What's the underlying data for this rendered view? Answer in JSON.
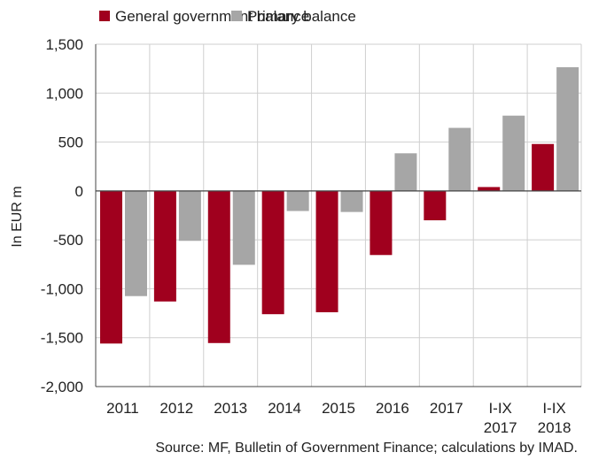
{
  "chart_data": {
    "type": "bar",
    "title": "",
    "xlabel": "",
    "ylabel": "In EUR m",
    "ylim": [
      -2000,
      1500
    ],
    "yticks": [
      -2000,
      -1500,
      -1000,
      -500,
      0,
      500,
      1000,
      1500
    ],
    "ytick_labels": [
      "-2,000",
      "-1,500",
      "-1,000",
      "-500",
      "0",
      "500",
      "1,000",
      "1,500"
    ],
    "categories": [
      [
        "2011"
      ],
      [
        "2012"
      ],
      [
        "2013"
      ],
      [
        "2014"
      ],
      [
        "2015"
      ],
      [
        "2016"
      ],
      [
        "2017"
      ],
      [
        "I-IX",
        "2017"
      ],
      [
        "I-IX",
        "2018"
      ]
    ],
    "series": [
      {
        "name": "General government balance",
        "color": "#A0001E",
        "values": [
          -1560,
          -1130,
          -1555,
          -1260,
          -1240,
          -655,
          -300,
          40,
          480
        ]
      },
      {
        "name": "Primary balance",
        "color": "#A6A6A6",
        "values": [
          -1075,
          -510,
          -755,
          -205,
          -215,
          385,
          645,
          770,
          1265
        ]
      }
    ],
    "grid": true,
    "legend_position": "top-left",
    "source": "Source: MF, Bulletin of Government Finance; calculations by IMAD."
  }
}
